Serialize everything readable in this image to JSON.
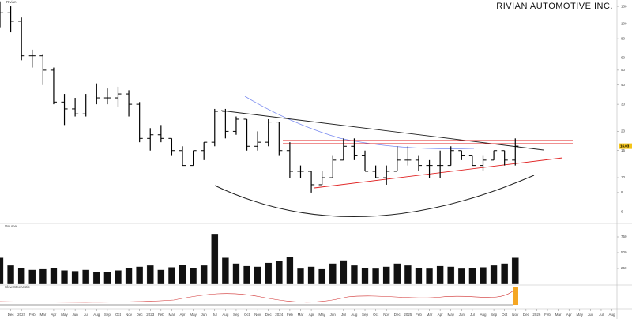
{
  "chart_data": {
    "type": "ohlc",
    "title": "RIVIAN AUTOMOTIVE INC.",
    "log_scale": true,
    "xlim": [
      0,
      57.4
    ],
    "ylim": [
      5.1,
      143
    ],
    "yticks": [
      130,
      100,
      80,
      60,
      50,
      40,
      30,
      20,
      15,
      10,
      8,
      6
    ],
    "last_price": 16.03,
    "last_price_color": "#f5c518",
    "xticks": [
      {
        "value": 1,
        "label": "Dec"
      },
      {
        "value": 2,
        "label": "2022"
      },
      {
        "value": 3,
        "label": "Feb"
      },
      {
        "value": 4,
        "label": "Mar"
      },
      {
        "value": 5,
        "label": "Apr"
      },
      {
        "value": 6,
        "label": "May"
      },
      {
        "value": 7,
        "label": "Jun"
      },
      {
        "value": 8,
        "label": "Jul"
      },
      {
        "value": 9,
        "label": "Aug"
      },
      {
        "value": 10,
        "label": "Sep"
      },
      {
        "value": 11,
        "label": "Oct"
      },
      {
        "value": 12,
        "label": "Nov"
      },
      {
        "value": 13,
        "label": "Dec"
      },
      {
        "value": 14,
        "label": "2023"
      },
      {
        "value": 15,
        "label": "Feb"
      },
      {
        "value": 16,
        "label": "Mar"
      },
      {
        "value": 17,
        "label": "Apr"
      },
      {
        "value": 18,
        "label": "May"
      },
      {
        "value": 19,
        "label": "Jun"
      },
      {
        "value": 20,
        "label": "Jul"
      },
      {
        "value": 21,
        "label": "Aug"
      },
      {
        "value": 22,
        "label": "Sep"
      },
      {
        "value": 23,
        "label": "Oct"
      },
      {
        "value": 24,
        "label": "Nov"
      },
      {
        "value": 25,
        "label": "Dec"
      },
      {
        "value": 26,
        "label": "2024"
      },
      {
        "value": 27,
        "label": "Feb"
      },
      {
        "value": 28,
        "label": "Mar"
      },
      {
        "value": 29,
        "label": "Apr"
      },
      {
        "value": 30,
        "label": "May"
      },
      {
        "value": 31,
        "label": "Jun"
      },
      {
        "value": 32,
        "label": "Jul"
      },
      {
        "value": 33,
        "label": "Aug"
      },
      {
        "value": 34,
        "label": "Sep"
      },
      {
        "value": 35,
        "label": "Oct"
      },
      {
        "value": 36,
        "label": "Nov"
      },
      {
        "value": 37,
        "label": "Dec"
      },
      {
        "value": 38,
        "label": "2025"
      },
      {
        "value": 39,
        "label": "Feb"
      },
      {
        "value": 40,
        "label": "Mar"
      },
      {
        "value": 41,
        "label": "Apr"
      },
      {
        "value": 42,
        "label": "May"
      },
      {
        "value": 43,
        "label": "Jun"
      },
      {
        "value": 44,
        "label": "Jul"
      },
      {
        "value": 45,
        "label": "Aug"
      },
      {
        "value": 46,
        "label": "Sep"
      },
      {
        "value": 47,
        "label": "Oct"
      },
      {
        "value": 48,
        "label": "Nov"
      },
      {
        "value": 49,
        "label": "Dec"
      },
      {
        "value": 50,
        "label": "2026"
      },
      {
        "value": 51,
        "label": "Feb"
      },
      {
        "value": 52,
        "label": "Mar"
      },
      {
        "value": 53,
        "label": "Apr"
      },
      {
        "value": 54,
        "label": "May"
      },
      {
        "value": 55,
        "label": "Jun"
      },
      {
        "value": 56,
        "label": "Jul"
      },
      {
        "value": 57,
        "label": "Aug"
      }
    ],
    "series": [
      {
        "name": "Rivian",
        "color": "#000000",
        "x": [
          0,
          1,
          2,
          3,
          4,
          5,
          6,
          7,
          8,
          9,
          10,
          11,
          12,
          13,
          14,
          15,
          16,
          17,
          18,
          19,
          20,
          21,
          22,
          23,
          24,
          25,
          26,
          27,
          28,
          29,
          30,
          31,
          32,
          33,
          34,
          35,
          36,
          37,
          38,
          39,
          40,
          41,
          42,
          43,
          44,
          45,
          46,
          47,
          48
        ],
        "open": [
          100,
          118,
          104,
          62,
          62,
          50,
          31,
          28,
          26,
          34,
          33,
          33,
          35,
          30,
          18,
          19,
          18,
          15,
          12,
          15,
          17,
          27,
          20,
          24,
          16,
          17,
          23,
          15,
          11,
          11,
          9,
          10,
          13,
          16,
          14,
          11,
          10,
          11,
          13,
          13,
          12,
          12,
          12,
          15,
          14,
          12,
          13,
          15,
          13
        ],
        "high": [
          140,
          130,
          110,
          68,
          64,
          52,
          35,
          33,
          35,
          41,
          38,
          39,
          37,
          31,
          21,
          22,
          18,
          16,
          15,
          17,
          28,
          28,
          25,
          24,
          20,
          24,
          23,
          17,
          12,
          11,
          11,
          14,
          18,
          18,
          15,
          12,
          12,
          16,
          16,
          14,
          13,
          15,
          16,
          15,
          14,
          14,
          15,
          15,
          18
        ],
        "low": [
          95,
          88,
          58,
          52,
          40,
          30,
          22,
          25,
          25,
          30,
          30,
          29,
          25,
          17,
          15,
          17,
          14,
          12,
          12,
          13,
          16,
          18,
          19,
          15,
          15,
          16,
          14,
          10,
          10,
          8,
          9,
          10,
          13,
          13,
          11,
          10,
          9,
          11,
          12,
          11,
          10,
          10,
          12,
          13,
          12,
          11,
          13,
          12,
          12
        ],
        "close": [
          118,
          104,
          62,
          62,
          50,
          31,
          28,
          26,
          34,
          33,
          33,
          35,
          30,
          18,
          19,
          18,
          15,
          12,
          15,
          17,
          27,
          20,
          24,
          16,
          17,
          23,
          15,
          11,
          11,
          9,
          10,
          13,
          16,
          14,
          11,
          10,
          11,
          13,
          13,
          12,
          12,
          12,
          15,
          14,
          12,
          13,
          15,
          13,
          16.03
        ]
      }
    ],
    "volume": {
      "name": "Volume",
      "color": "#111111",
      "ylim": [
        0,
        900
      ],
      "yticks": [
        250,
        500,
        750
      ],
      "values": [
        420,
        300,
        260,
        230,
        240,
        260,
        220,
        210,
        230,
        200,
        190,
        220,
        260,
        280,
        300,
        230,
        270,
        310,
        260,
        300,
        800,
        420,
        330,
        290,
        280,
        340,
        370,
        430,
        250,
        280,
        240,
        330,
        380,
        300,
        260,
        250,
        280,
        330,
        300,
        260,
        250,
        290,
        280,
        250,
        260,
        270,
        300,
        330,
        420
      ]
    },
    "indicator": {
      "name": "Slow Stochastic"
    }
  }
}
